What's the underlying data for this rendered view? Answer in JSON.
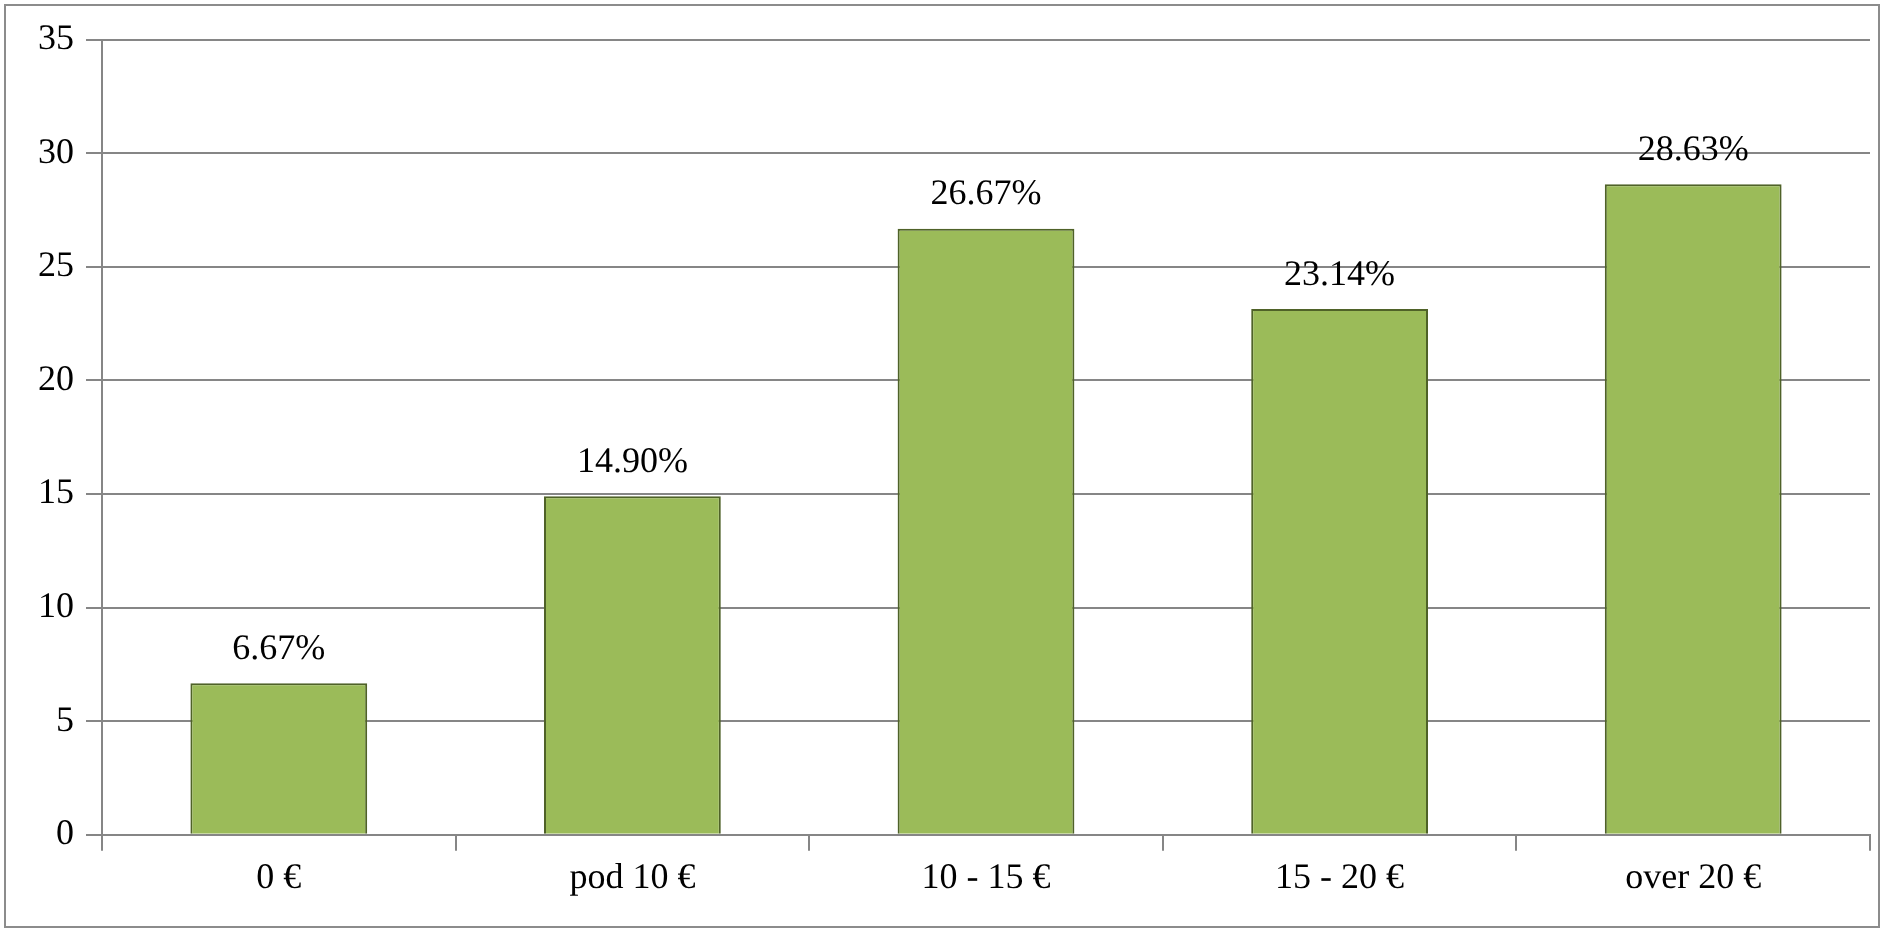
{
  "chart_data": {
    "type": "bar",
    "categories": [
      "0 €",
      "pod 10 €",
      "10 - 15 €",
      "15 - 20 €",
      "over 20 €"
    ],
    "values": [
      6.67,
      14.9,
      26.67,
      23.14,
      28.63
    ],
    "value_labels": [
      "6.67%",
      "14.90%",
      "26.67%",
      "23.14%",
      "28.63%"
    ],
    "color": "#9bbb59",
    "ylim": [
      0,
      35
    ],
    "yticks": [
      0,
      5,
      10,
      15,
      20,
      25,
      30,
      35
    ],
    "grid": "y",
    "legend": false
  }
}
